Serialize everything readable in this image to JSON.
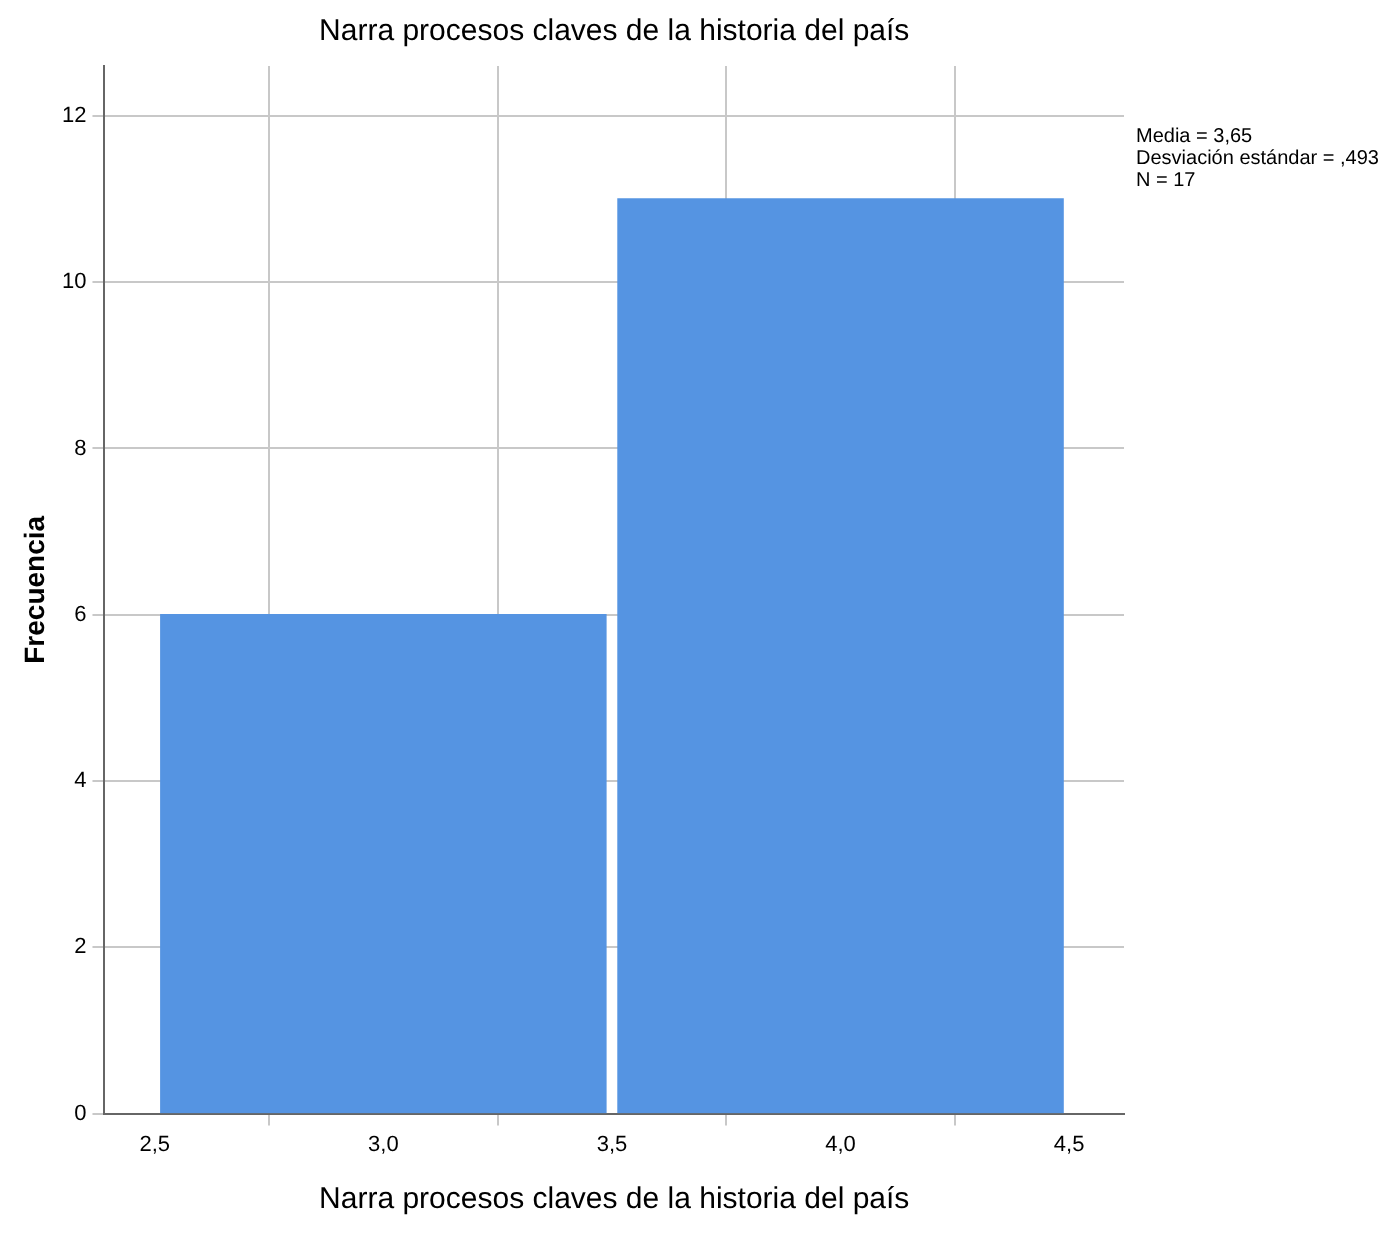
{
  "chart_data": {
    "type": "histogram",
    "title": "Narra procesos claves de la historia del país",
    "xlabel": "Narra procesos claves de la historia del país",
    "ylabel": "Frecuencia",
    "bins": [
      2.5,
      3.5,
      4.5
    ],
    "values": [
      6,
      11
    ],
    "color": "#5594e2",
    "xlim": [
      2.39,
      4.62
    ],
    "xticks": [
      {
        "value": 2.5,
        "label": "2,5"
      },
      {
        "value": 3.0,
        "label": "3,0"
      },
      {
        "value": 3.5,
        "label": "3,5"
      },
      {
        "value": 4.0,
        "label": "4,0"
      },
      {
        "value": 4.5,
        "label": "4,5"
      }
    ],
    "ylim": [
      0,
      12.6
    ],
    "yticks": [
      0,
      2,
      4,
      6,
      8,
      10,
      12
    ],
    "grid": true,
    "annotations": [
      "Media = 3,65",
      "Desviación estándar = ,493",
      "N = 17"
    ]
  }
}
